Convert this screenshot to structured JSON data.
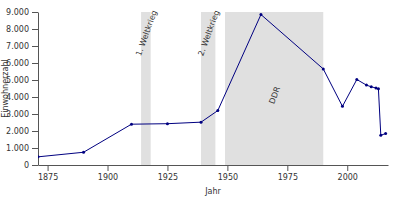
{
  "chart_data": {
    "type": "line",
    "x_label": "Jahr",
    "y_label": "Einwohnerzahl",
    "x": [
      1871,
      1890,
      1910,
      1925,
      1939,
      1946,
      1964,
      1990,
      1998,
      2004,
      2008,
      2010,
      2012,
      2013,
      2014,
      2016
    ],
    "values": [
      480,
      750,
      2400,
      2430,
      2520,
      3200,
      8850,
      5650,
      3450,
      5030,
      4700,
      4600,
      4530,
      4480,
      1750,
      1850
    ],
    "color": "#000080",
    "marker": "circle",
    "xlim": [
      1871,
      2017
    ],
    "xticks": [
      1875,
      1900,
      1925,
      1950,
      1975,
      2000
    ],
    "ylim": [
      0,
      9000
    ],
    "yticks": [
      0,
      {
        "value": 1000,
        "label": "1.000"
      },
      {
        "value": 2000,
        "label": "2.000"
      },
      {
        "value": 3000,
        "label": "3.000"
      },
      {
        "value": 4000,
        "label": "4.000"
      },
      {
        "value": 5000,
        "label": "5.000"
      },
      {
        "value": 6000,
        "label": "6.000"
      },
      {
        "value": 7000,
        "label": "7.000"
      },
      {
        "value": 8000,
        "label": "8.000"
      },
      {
        "value": 9000,
        "label": "9.000"
      }
    ],
    "grid": false,
    "periods": [
      {
        "label": "1. Weltkrieg",
        "start": 1914,
        "end": 1918
      },
      {
        "label": "2. Weltkrieg",
        "start": 1939,
        "end": 1945
      },
      {
        "label": "DDR",
        "start": 1949,
        "end": 1990
      }
    ]
  }
}
